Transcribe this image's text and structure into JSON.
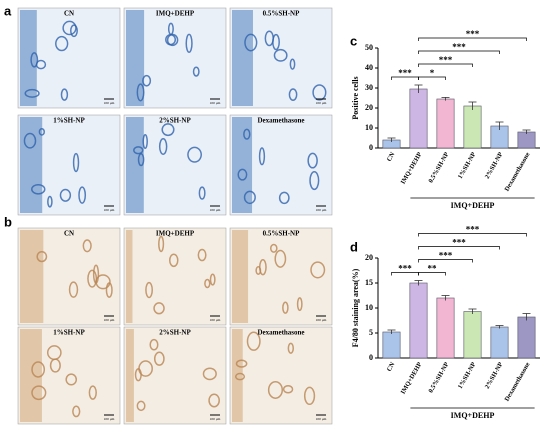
{
  "panel_labels": [
    "a",
    "b",
    "c",
    "d"
  ],
  "micrographs": {
    "a": [
      "CN",
      "IMQ+DEHP",
      "0.5%SH-NP",
      "1%SH-NP",
      "2%SH-NP",
      "Dexamethasone"
    ],
    "b": [
      "CN",
      "IMQ+DEHP",
      "0.5%SH-NP",
      "1%SH-NP",
      "2%SH-NP",
      "Dexamethasone"
    ],
    "scale_bar": "100 μm"
  },
  "chart_data": [
    {
      "type": "bar",
      "ylabel": "Positive cells",
      "categories": [
        "CN",
        "IMQ+DEHP",
        "0.5%SH-NP",
        "1%SH-NP",
        "2%SH-NP",
        "Dexamethasone"
      ],
      "values": [
        4,
        29.5,
        24.5,
        21,
        11,
        8
      ],
      "errors": [
        1,
        2,
        0.8,
        2,
        2,
        1
      ],
      "colors": [
        "#a9c4e8",
        "#cdb6e3",
        "#f2b6d3",
        "#cbe8b4",
        "#a9c4e8",
        "#9d97c4"
      ],
      "ylim": [
        0,
        50
      ],
      "yticks": [
        0,
        10,
        20,
        30,
        40,
        50
      ],
      "significance": [
        {
          "from": 0,
          "to": 1,
          "label": "***"
        },
        {
          "from": 1,
          "to": 2,
          "label": "*"
        },
        {
          "from": 1,
          "to": 3,
          "label": "***"
        },
        {
          "from": 1,
          "to": 4,
          "label": "***"
        },
        {
          "from": 1,
          "to": 5,
          "label": "***"
        }
      ],
      "group": {
        "label": "IMQ+DEHP",
        "from": 1,
        "to": 5
      }
    },
    {
      "type": "bar",
      "ylabel": "F4/80 staining area(%)",
      "categories": [
        "CN",
        "IMQ+DEHP",
        "0.5%SH-NP",
        "1%SH-NP",
        "2%SH-NP",
        "Dexamethasone"
      ],
      "values": [
        5.2,
        15,
        12,
        9.3,
        6.2,
        8.2
      ],
      "errors": [
        0.4,
        0.5,
        0.5,
        0.5,
        0.3,
        0.7
      ],
      "colors": [
        "#a9c4e8",
        "#cdb6e3",
        "#f2b6d3",
        "#cbe8b4",
        "#a9c4e8",
        "#9d97c4"
      ],
      "ylim": [
        0,
        20
      ],
      "yticks": [
        0,
        5,
        10,
        15,
        20
      ],
      "significance": [
        {
          "from": 0,
          "to": 1,
          "label": "***"
        },
        {
          "from": 1,
          "to": 2,
          "label": "**"
        },
        {
          "from": 1,
          "to": 3,
          "label": "***"
        },
        {
          "from": 1,
          "to": 4,
          "label": "***"
        },
        {
          "from": 1,
          "to": 5,
          "label": "***"
        }
      ],
      "group": {
        "label": "IMQ+DEHP",
        "from": 1,
        "to": 5
      }
    }
  ]
}
